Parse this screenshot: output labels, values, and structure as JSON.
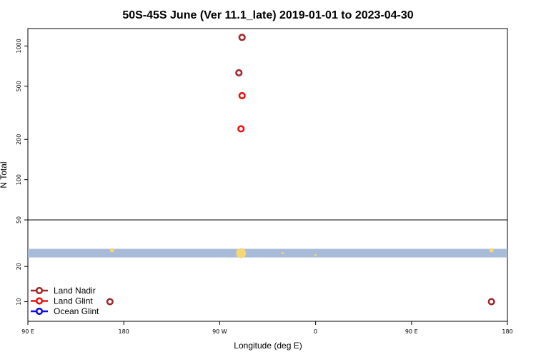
{
  "chart_data": {
    "type": "scatter",
    "title": "50S-45S June (Ver 11.1_late)   2019-01-01 to 2023-04-30",
    "xlabel": "Longitude (deg E)",
    "ylabel": "N Total",
    "x_tick_labels": [
      "90 E",
      "180",
      "90 W",
      "0",
      "90 E",
      "180"
    ],
    "x_ticks": [
      90,
      180,
      270,
      360,
      450,
      540
    ],
    "xlim": [
      90,
      540
    ],
    "upper_panel": {
      "scale": "log",
      "ylim": [
        50,
        1350
      ],
      "y_ticks": [
        50,
        100,
        200,
        500,
        1000
      ],
      "y_tick_labels": [
        "50",
        "100",
        "200",
        "500",
        "1000"
      ]
    },
    "lower_panel": {
      "scale": "log",
      "ylim": [
        6.8,
        50
      ],
      "y_ticks": [
        10,
        20
      ],
      "y_tick_labels": [
        "10",
        "20"
      ],
      "band": {
        "y": 26,
        "color": "#a8bcd9"
      }
    },
    "series": [
      {
        "name": "Land Nadir",
        "color": "#a0282d",
        "points": [
          [
            291,
            1160
          ],
          [
            288,
            630
          ],
          [
            167,
            10
          ],
          [
            525,
            10
          ]
        ]
      },
      {
        "name": "Land Glint",
        "color": "#f01010",
        "points": [
          [
            291,
            425
          ],
          [
            290,
            240
          ]
        ]
      },
      {
        "name": "Ocean Glint",
        "color": "#1010e0",
        "points": []
      }
    ],
    "highlights": {
      "color": "#f7d774",
      "points": [
        [
          169,
          27.5,
          3
        ],
        [
          290,
          26,
          7
        ],
        [
          329,
          26,
          1.5
        ],
        [
          360,
          25,
          1.5
        ],
        [
          525,
          27.5,
          3
        ]
      ]
    },
    "legend": {
      "placement": "bottom-left"
    }
  }
}
